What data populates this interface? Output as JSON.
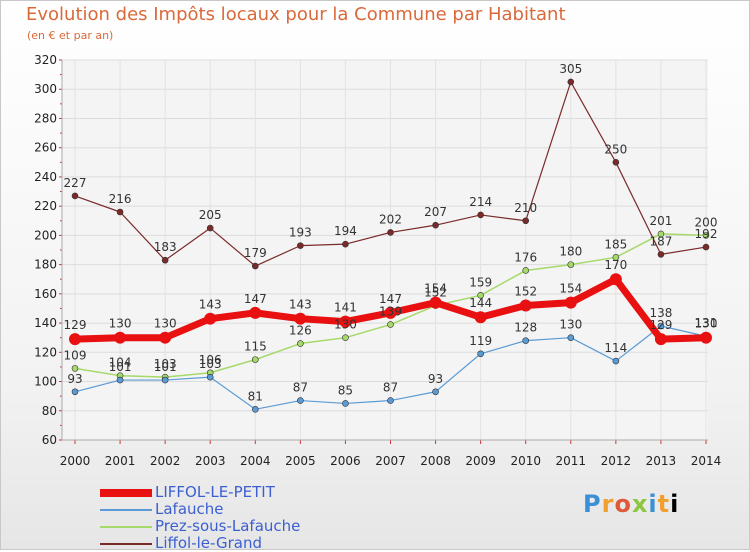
{
  "chart_data": {
    "type": "line",
    "title": "Evolution des Impôts locaux pour la Commune par Habitant",
    "subtitle": "(en € et par an)",
    "categories": [
      "2000",
      "2001",
      "2002",
      "2003",
      "2004",
      "2005",
      "2006",
      "2007",
      "2008",
      "2009",
      "2010",
      "2011",
      "2012",
      "2013",
      "2014"
    ],
    "ylim": [
      60,
      320
    ],
    "yticks": [
      60,
      80,
      100,
      120,
      140,
      160,
      180,
      200,
      220,
      240,
      260,
      280,
      300,
      320
    ],
    "grid": true,
    "series": [
      {
        "name": "Liffol-le-Grand",
        "color": "#7b2a2a",
        "values": [
          227,
          216,
          183,
          205,
          179,
          193,
          194,
          202,
          207,
          214,
          210,
          305,
          250,
          187,
          192
        ],
        "labels": [
          "227",
          "216",
          "183",
          "205",
          "179",
          "193",
          "194",
          "202",
          "207",
          "214",
          "210",
          "305",
          "250",
          "187",
          "192"
        ]
      },
      {
        "name": "Prez-sous-Lafauche",
        "color": "#a5d96a",
        "values": [
          109,
          104,
          103,
          106,
          115,
          126,
          130,
          139,
          152,
          159,
          176,
          180,
          185,
          201,
          200
        ],
        "labels": [
          "109",
          "104",
          "103",
          "106",
          "115",
          "126",
          "130",
          "139",
          "152",
          "159",
          "176",
          "180",
          "185",
          "201",
          "200"
        ]
      },
      {
        "name": "Lafauche",
        "color": "#5b9bd5",
        "values": [
          93,
          101,
          101,
          103,
          81,
          87,
          85,
          87,
          93,
          119,
          128,
          130,
          114,
          138,
          131
        ],
        "labels": [
          "93",
          "101",
          "101",
          "103",
          "81",
          "87",
          "85",
          "87",
          "93",
          "119",
          "128",
          "130",
          "114",
          "138",
          "131"
        ]
      },
      {
        "name": "LIFFOL-LE-PETIT",
        "color": "#e81010",
        "values": [
          129,
          130,
          130,
          143,
          147,
          143,
          141,
          147,
          154,
          144,
          152,
          154,
          170,
          129,
          130
        ],
        "labels": [
          "129",
          "130",
          "130",
          "143",
          "147",
          "143",
          "141",
          "147",
          "154",
          "144",
          "152",
          "154",
          "170",
          "129",
          "130"
        ]
      }
    ],
    "legend": [
      "LIFFOL-LE-PETIT",
      "Lafauche",
      "Prez-sous-Lafauche",
      "Liffol-le-Grand"
    ],
    "legend_position": "bottom-left"
  },
  "logo": {
    "letters": [
      "P",
      "r",
      "o",
      "x",
      "i",
      "t",
      "i"
    ]
  }
}
